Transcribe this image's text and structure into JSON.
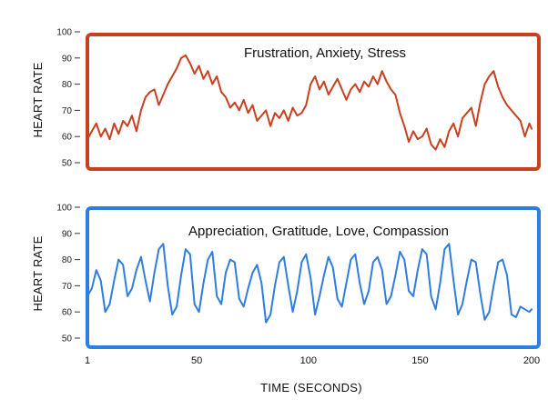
{
  "chart_data": [
    {
      "type": "line",
      "title": "Frustration, Anxiety, Stress",
      "ylabel": "HEART RATE",
      "xlabel": "",
      "ylim": [
        50,
        100
      ],
      "yticks": [
        "50",
        "60",
        "70",
        "80",
        "90",
        "100"
      ],
      "xlim": [
        1,
        200
      ],
      "color": "#c8401e",
      "grid": false,
      "series": [
        {
          "x": [
            1,
            3,
            5,
            7,
            9,
            11,
            13,
            15,
            17,
            19,
            21,
            23,
            25,
            27,
            29,
            31,
            33,
            35,
            37,
            39,
            41,
            43,
            45,
            47,
            49,
            51,
            53,
            55,
            57,
            59,
            61,
            63,
            65,
            67,
            69,
            71,
            73,
            75,
            77,
            79,
            81,
            83,
            85,
            87,
            89,
            91,
            93,
            95,
            97,
            99,
            101,
            103,
            105,
            107,
            109,
            111,
            113,
            115,
            117,
            119,
            121,
            123,
            125,
            127,
            129,
            131,
            133,
            135,
            137,
            139,
            141,
            143,
            145,
            147,
            149,
            151,
            153,
            155,
            157,
            159,
            161,
            163,
            165,
            167,
            169,
            171,
            173,
            175,
            177,
            179,
            181,
            183,
            185,
            187,
            189,
            191,
            193,
            195,
            197,
            199,
            200
          ],
          "y": [
            59,
            62,
            65,
            60,
            63,
            59,
            65,
            61,
            66,
            64,
            68,
            62,
            70,
            75,
            77,
            78,
            72,
            76,
            80,
            83,
            86,
            90,
            91,
            88,
            84,
            87,
            82,
            85,
            80,
            83,
            77,
            75,
            71,
            73,
            70,
            74,
            69,
            72,
            66,
            68,
            70,
            64,
            69,
            67,
            70,
            66,
            71,
            68,
            69,
            72,
            80,
            83,
            78,
            81,
            76,
            79,
            82,
            78,
            74,
            78,
            80,
            77,
            81,
            79,
            83,
            80,
            85,
            81,
            78,
            76,
            69,
            64,
            58,
            62,
            59,
            60,
            63,
            57,
            55,
            59,
            56,
            62,
            65,
            60,
            67,
            69,
            71,
            64,
            73,
            80,
            83,
            85,
            79,
            75,
            72,
            70,
            68,
            66,
            60,
            65,
            63
          ]
        }
      ]
    },
    {
      "type": "line",
      "title": "Appreciation, Gratitude, Love, Compassion",
      "ylabel": "HEART RATE",
      "xlabel": "TIME (SECONDS)",
      "ylim": [
        50,
        100
      ],
      "yticks": [
        "50",
        "60",
        "70",
        "80",
        "90",
        "100"
      ],
      "xlim": [
        1,
        200
      ],
      "xticks": [
        "1",
        "50",
        "100",
        "150",
        "200"
      ],
      "color": "#2f7de1",
      "grid": false,
      "series": [
        {
          "x": [
            1,
            3,
            5,
            7,
            9,
            11,
            13,
            15,
            17,
            19,
            21,
            23,
            25,
            27,
            29,
            31,
            33,
            35,
            37,
            39,
            41,
            43,
            45,
            47,
            49,
            51,
            53,
            55,
            57,
            59,
            61,
            63,
            65,
            67,
            69,
            71,
            73,
            75,
            77,
            79,
            81,
            83,
            85,
            87,
            89,
            91,
            93,
            95,
            97,
            99,
            101,
            103,
            105,
            107,
            109,
            111,
            113,
            115,
            117,
            119,
            121,
            123,
            125,
            127,
            129,
            131,
            133,
            135,
            137,
            139,
            141,
            143,
            145,
            147,
            149,
            151,
            153,
            155,
            157,
            159,
            161,
            163,
            165,
            167,
            169,
            171,
            173,
            175,
            177,
            179,
            181,
            183,
            185,
            187,
            189,
            191,
            193,
            195,
            197,
            199,
            200
          ],
          "y": [
            66,
            69,
            76,
            72,
            60,
            63,
            72,
            80,
            78,
            66,
            69,
            76,
            81,
            72,
            64,
            75,
            84,
            86,
            70,
            59,
            62,
            74,
            84,
            82,
            63,
            60,
            71,
            80,
            83,
            66,
            63,
            75,
            80,
            79,
            65,
            62,
            69,
            75,
            78,
            71,
            56,
            59,
            70,
            79,
            81,
            70,
            60,
            68,
            79,
            82,
            73,
            59,
            66,
            74,
            81,
            77,
            65,
            62,
            71,
            80,
            82,
            71,
            63,
            68,
            79,
            81,
            76,
            63,
            66,
            74,
            83,
            80,
            68,
            66,
            76,
            84,
            82,
            66,
            61,
            71,
            84,
            86,
            72,
            59,
            63,
            72,
            80,
            79,
            67,
            57,
            60,
            70,
            79,
            80,
            74,
            59,
            58,
            62,
            61,
            60,
            61
          ]
        }
      ]
    }
  ],
  "xaxis": {
    "ticks": [
      "1",
      "50",
      "100",
      "150",
      "200"
    ],
    "label": "TIME (SECONDS)"
  }
}
